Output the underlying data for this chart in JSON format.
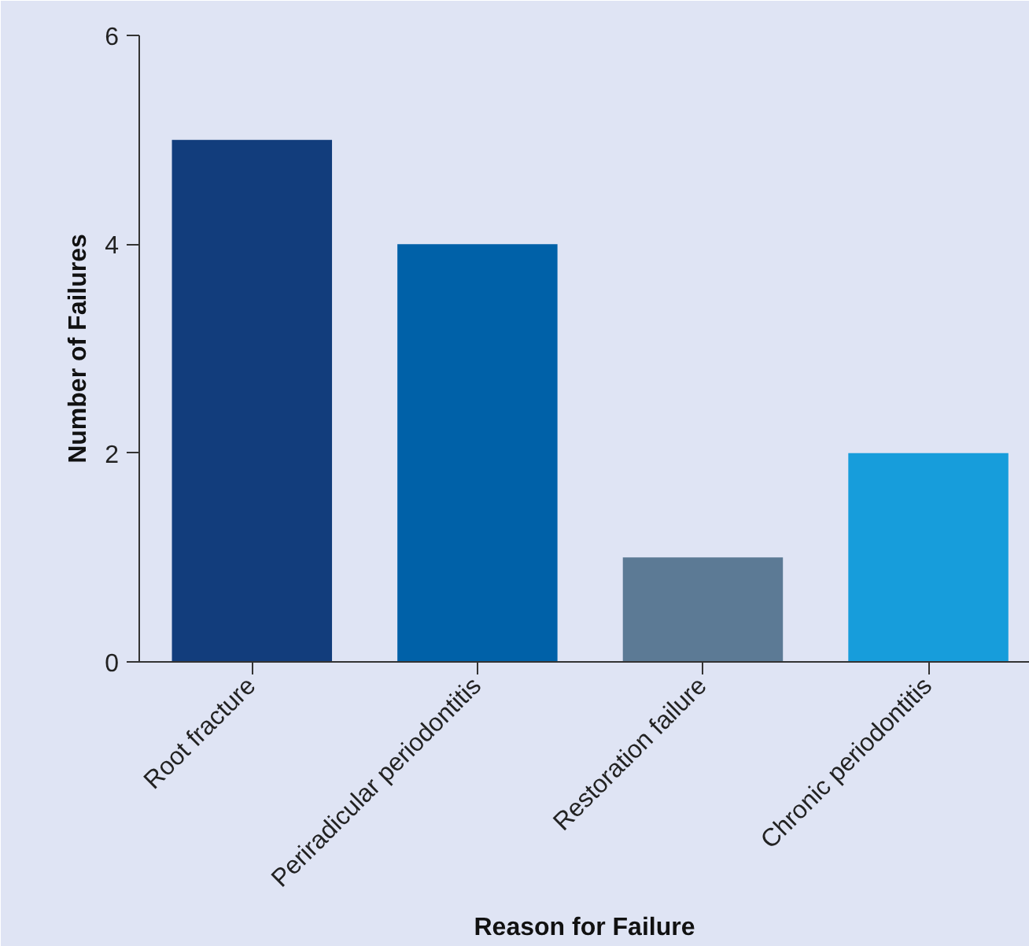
{
  "chart_data": {
    "type": "bar",
    "xlabel": "Reason for Failure",
    "ylabel": "Number of Failures",
    "categories": [
      "Root fracture",
      "Periradicular periodontitis",
      "Restoration failure",
      "Chronic periodontitis"
    ],
    "values": [
      5,
      4,
      1,
      2
    ],
    "colors": [
      "#123d7c",
      "#0061a8",
      "#5c7a95",
      "#179ddb"
    ],
    "ylim": [
      0,
      6
    ],
    "yticks": [
      0,
      2,
      4,
      6
    ]
  }
}
